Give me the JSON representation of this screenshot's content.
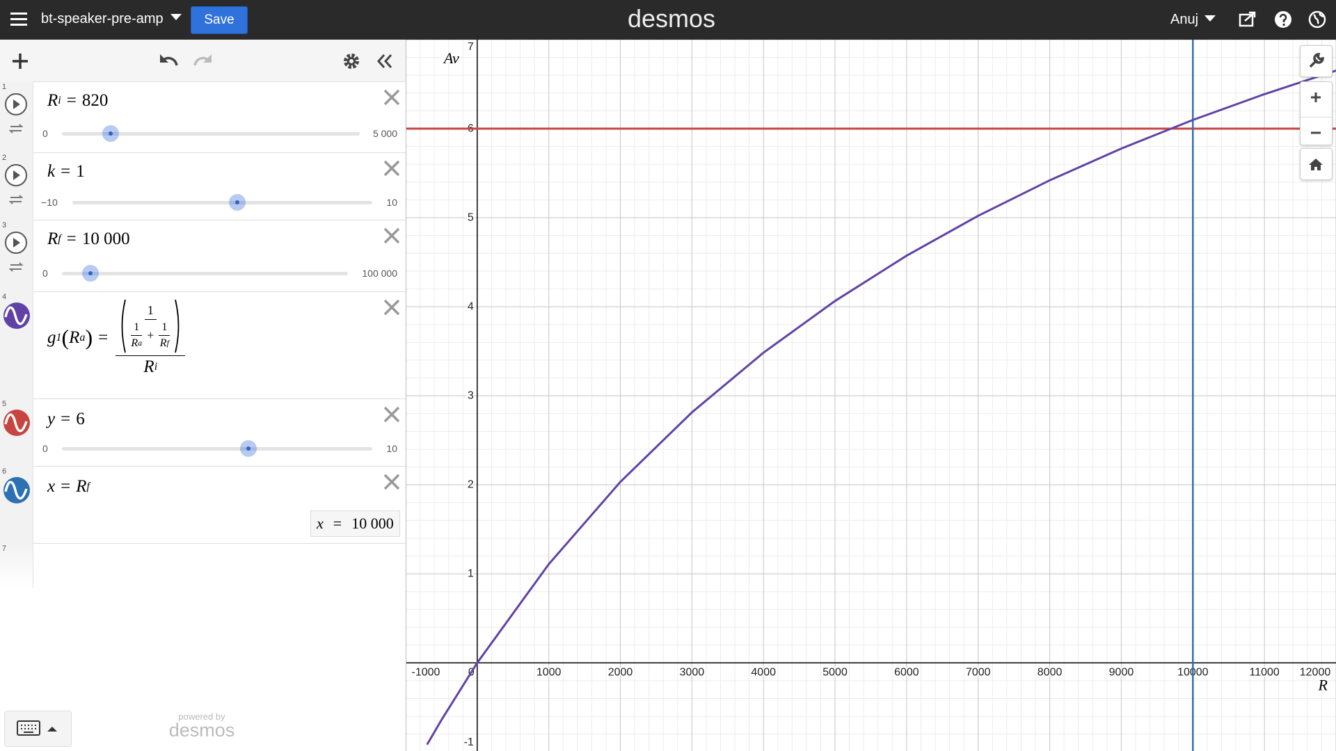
{
  "header": {
    "title": "bt-speaker-pre-amp",
    "save": "Save",
    "logo": "desmos",
    "user": "Anuj"
  },
  "expressions": [
    {
      "number": "1",
      "name": "R",
      "sub": "i",
      "op": "=",
      "value": 820,
      "slider": {
        "min": 0,
        "max": {
          "value": 5000,
          "label": "5 000"
        }
      }
    },
    {
      "number": "2",
      "name": "k",
      "op": "=",
      "value": 1,
      "slider": {
        "min": {
          "value": -10,
          "label": "−10"
        },
        "max": 10
      }
    },
    {
      "number": "3",
      "name": "R",
      "sub": "f",
      "op": "=",
      "value": 10000,
      "value_label": "10 000",
      "slider": {
        "min": 0,
        "max": {
          "value": 100000,
          "label": "100 000"
        }
      }
    },
    {
      "number": "4",
      "color": "#6042a6",
      "formula": {
        "fn": "g",
        "fn_sub": "1",
        "open": "(",
        "arg": "R",
        "arg_sub": "a",
        "close": ")",
        "op": "=",
        "top": "1",
        "t1_num": "1",
        "t1_den": "R",
        "t1_den_sub": "a",
        "plus": "+",
        "t2_num": "1",
        "t2_den": "R",
        "t2_den_sub": "f",
        "den": "R",
        "den_sub": "i"
      }
    },
    {
      "number": "5",
      "color": "#c74440",
      "name": "y",
      "op": "=",
      "value": 6,
      "slider": {
        "min": 0,
        "max": 10
      }
    },
    {
      "number": "6",
      "color": "#2d70b3",
      "name": "x",
      "op": "=",
      "rhs": "R",
      "rhs_sub": "f",
      "evaluation": {
        "name": "x",
        "op": "=",
        "value": 10000,
        "value_label": "10 000"
      }
    },
    {
      "number": "7"
    }
  ],
  "footer": {
    "powered": "powered by",
    "logo": "desmos"
  },
  "graph": {
    "type": "line",
    "x_label": "R",
    "y_label": "Av",
    "xlim": [
      -990,
      12000
    ],
    "ylim": [
      -0.99,
      7
    ],
    "xticks": [
      -1000,
      0,
      1000,
      2000,
      3000,
      4000,
      5000,
      6000,
      7000,
      8000,
      9000,
      10000,
      11000,
      12000
    ],
    "yticks": [
      -1,
      1,
      2,
      3,
      4,
      5,
      6,
      7
    ],
    "grid": true,
    "minor_per_major": 5,
    "curve": {
      "color": "#6042a6",
      "x": [
        -700,
        -500,
        0,
        1000,
        2000,
        3000,
        4000,
        5000,
        6000,
        7000,
        8000,
        9000,
        10000,
        11000,
        12000,
        12500
      ],
      "values": [
        -0.918,
        -0.642,
        0,
        1.109,
        2.033,
        2.814,
        3.484,
        4.065,
        4.573,
        5.022,
        5.42,
        5.777,
        6.098,
        6.388,
        6.652,
        6.775
      ]
    }
  }
}
